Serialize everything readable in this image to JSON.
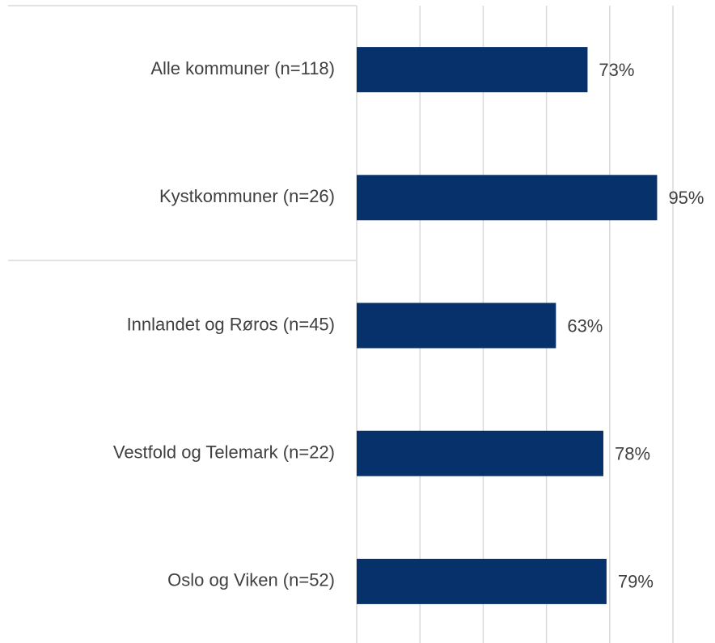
{
  "chart_data": {
    "type": "bar",
    "orientation": "horizontal",
    "categories": [
      "Alle kommuner (n=118)",
      "Kystkommuner (n=26)",
      "Innlandet og Røros (n=45)",
      "Vestfold og Telemark (n=22)",
      "Oslo og Viken (n=52)"
    ],
    "values": [
      73,
      95,
      63,
      78,
      79
    ],
    "value_labels": [
      "73%",
      "95%",
      "63%",
      "78%",
      "79%"
    ],
    "color": "#06316b",
    "xlim": [
      0,
      100
    ],
    "xticks": [
      0,
      20,
      40,
      60,
      80,
      100
    ],
    "grid": true
  }
}
